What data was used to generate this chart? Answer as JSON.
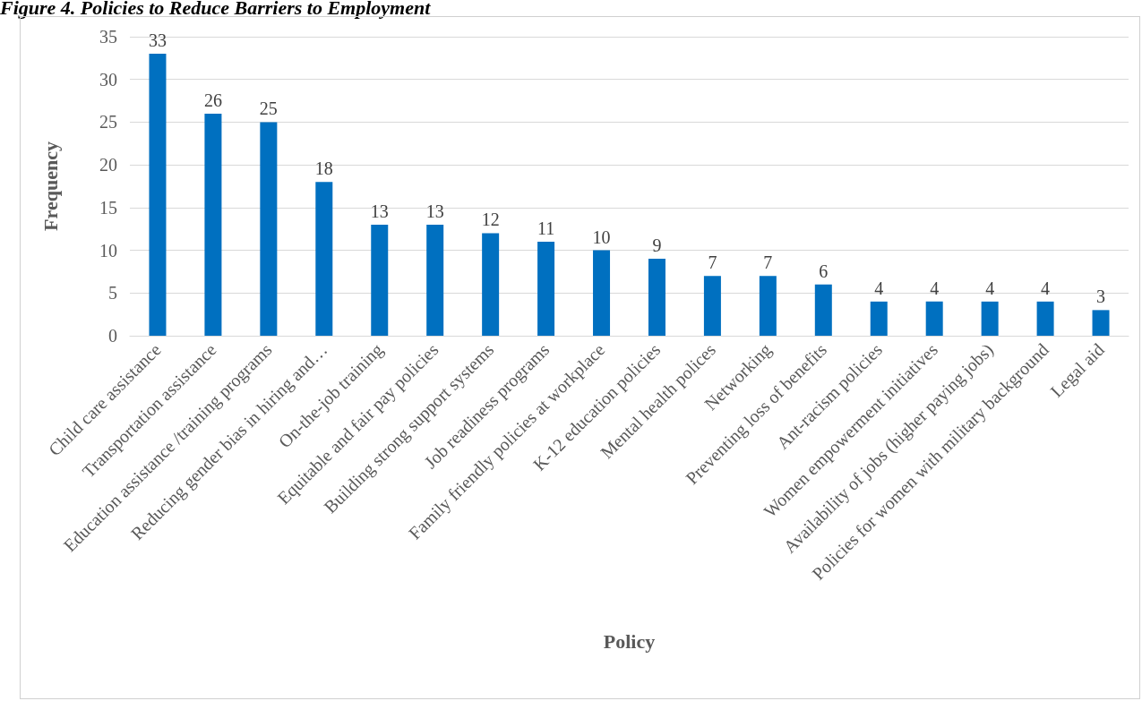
{
  "chart_data": {
    "type": "bar",
    "title": "Figure 4. Policies to Reduce Barriers to Employment",
    "xlabel": "Policy",
    "ylabel": "Frequency",
    "categories": [
      "Child care assistance",
      "Transportation assistance",
      "Education assistance /training programs",
      "Reducing gender bias in hiring and…",
      "On-the-job training",
      "Equitable and fair pay policies",
      "Building strong support systems",
      "Job readiness programs",
      "Family friendly policies at workplace",
      "K-12 education policies",
      "Mental health polices",
      "Networking",
      "Preventing loss of benefits",
      "Ant-racism policies",
      "Women empowerment initiatives",
      "Availability of jobs (higher paying jobs)",
      "Policies for women with military background",
      "Legal aid"
    ],
    "values": [
      33,
      26,
      25,
      18,
      13,
      13,
      12,
      11,
      10,
      9,
      7,
      7,
      6,
      4,
      4,
      4,
      4,
      3
    ],
    "color": "#0070c0",
    "ylim": [
      0,
      35
    ],
    "yticks": [
      0,
      5,
      10,
      15,
      20,
      25,
      30,
      35
    ],
    "grid": "y",
    "data_labels": true
  }
}
